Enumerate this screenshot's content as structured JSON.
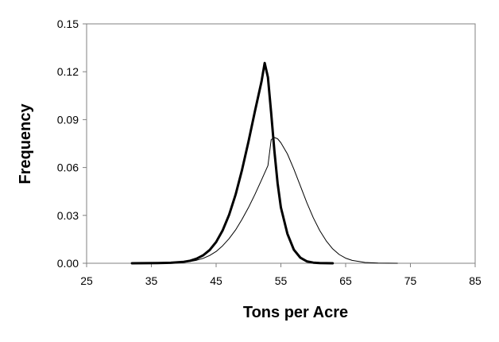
{
  "chart_data": {
    "type": "line",
    "title": "",
    "xlabel": "Tons per Acre",
    "ylabel": "Frequency",
    "xlim": [
      25,
      85
    ],
    "ylim": [
      0,
      0.15
    ],
    "xticks": [
      "25",
      "35",
      "45",
      "55",
      "65",
      "75",
      "85"
    ],
    "yticks": [
      "0.00",
      "0.03",
      "0.06",
      "0.09",
      "0.12",
      "0.15"
    ],
    "grid": false,
    "legend": "none",
    "series": [
      {
        "style": "thick",
        "color": "#000000",
        "points": [
          [
            32,
            0.0
          ],
          [
            36,
            0.0001
          ],
          [
            38,
            0.0003
          ],
          [
            40,
            0.0009
          ],
          [
            41,
            0.0016
          ],
          [
            42,
            0.0029
          ],
          [
            43,
            0.005
          ],
          [
            44,
            0.0083
          ],
          [
            45,
            0.0133
          ],
          [
            46,
            0.0205
          ],
          [
            47,
            0.0303
          ],
          [
            48,
            0.043
          ],
          [
            49,
            0.0585
          ],
          [
            50,
            0.0764
          ],
          [
            51,
            0.0954
          ],
          [
            52,
            0.1138
          ],
          [
            52.5,
            0.1255
          ],
          [
            53,
            0.1165
          ],
          [
            53.5,
            0.094
          ],
          [
            54,
            0.07
          ],
          [
            54.5,
            0.05
          ],
          [
            55,
            0.035
          ],
          [
            56,
            0.0185
          ],
          [
            57,
            0.0085
          ],
          [
            58,
            0.0035
          ],
          [
            59,
            0.0012
          ],
          [
            60,
            0.0004
          ],
          [
            61,
            0.0001
          ],
          [
            63,
            0.0
          ]
        ]
      },
      {
        "style": "thin",
        "color": "#000000",
        "points": [
          [
            36,
            0.0
          ],
          [
            38,
            0.0002
          ],
          [
            40,
            0.0006
          ],
          [
            41,
            0.0011
          ],
          [
            42,
            0.0019
          ],
          [
            43,
            0.0031
          ],
          [
            44,
            0.0049
          ],
          [
            45,
            0.0074
          ],
          [
            46,
            0.0109
          ],
          [
            47,
            0.0154
          ],
          [
            48,
            0.0209
          ],
          [
            49,
            0.0275
          ],
          [
            50,
            0.035
          ],
          [
            51,
            0.0432
          ],
          [
            52,
            0.0522
          ],
          [
            53,
            0.0612
          ],
          [
            53.5,
            0.0775
          ],
          [
            54,
            0.0788
          ],
          [
            54.5,
            0.078
          ],
          [
            55,
            0.0755
          ],
          [
            56,
            0.0685
          ],
          [
            57,
            0.059
          ],
          [
            58,
            0.0485
          ],
          [
            59,
            0.038
          ],
          [
            60,
            0.0285
          ],
          [
            61,
            0.0205
          ],
          [
            62,
            0.014
          ],
          [
            63,
            0.009
          ],
          [
            64,
            0.0055
          ],
          [
            65,
            0.0032
          ],
          [
            66,
            0.0018
          ],
          [
            68,
            0.0005
          ],
          [
            70,
            0.0001
          ],
          [
            73,
            0.0
          ]
        ]
      }
    ]
  }
}
